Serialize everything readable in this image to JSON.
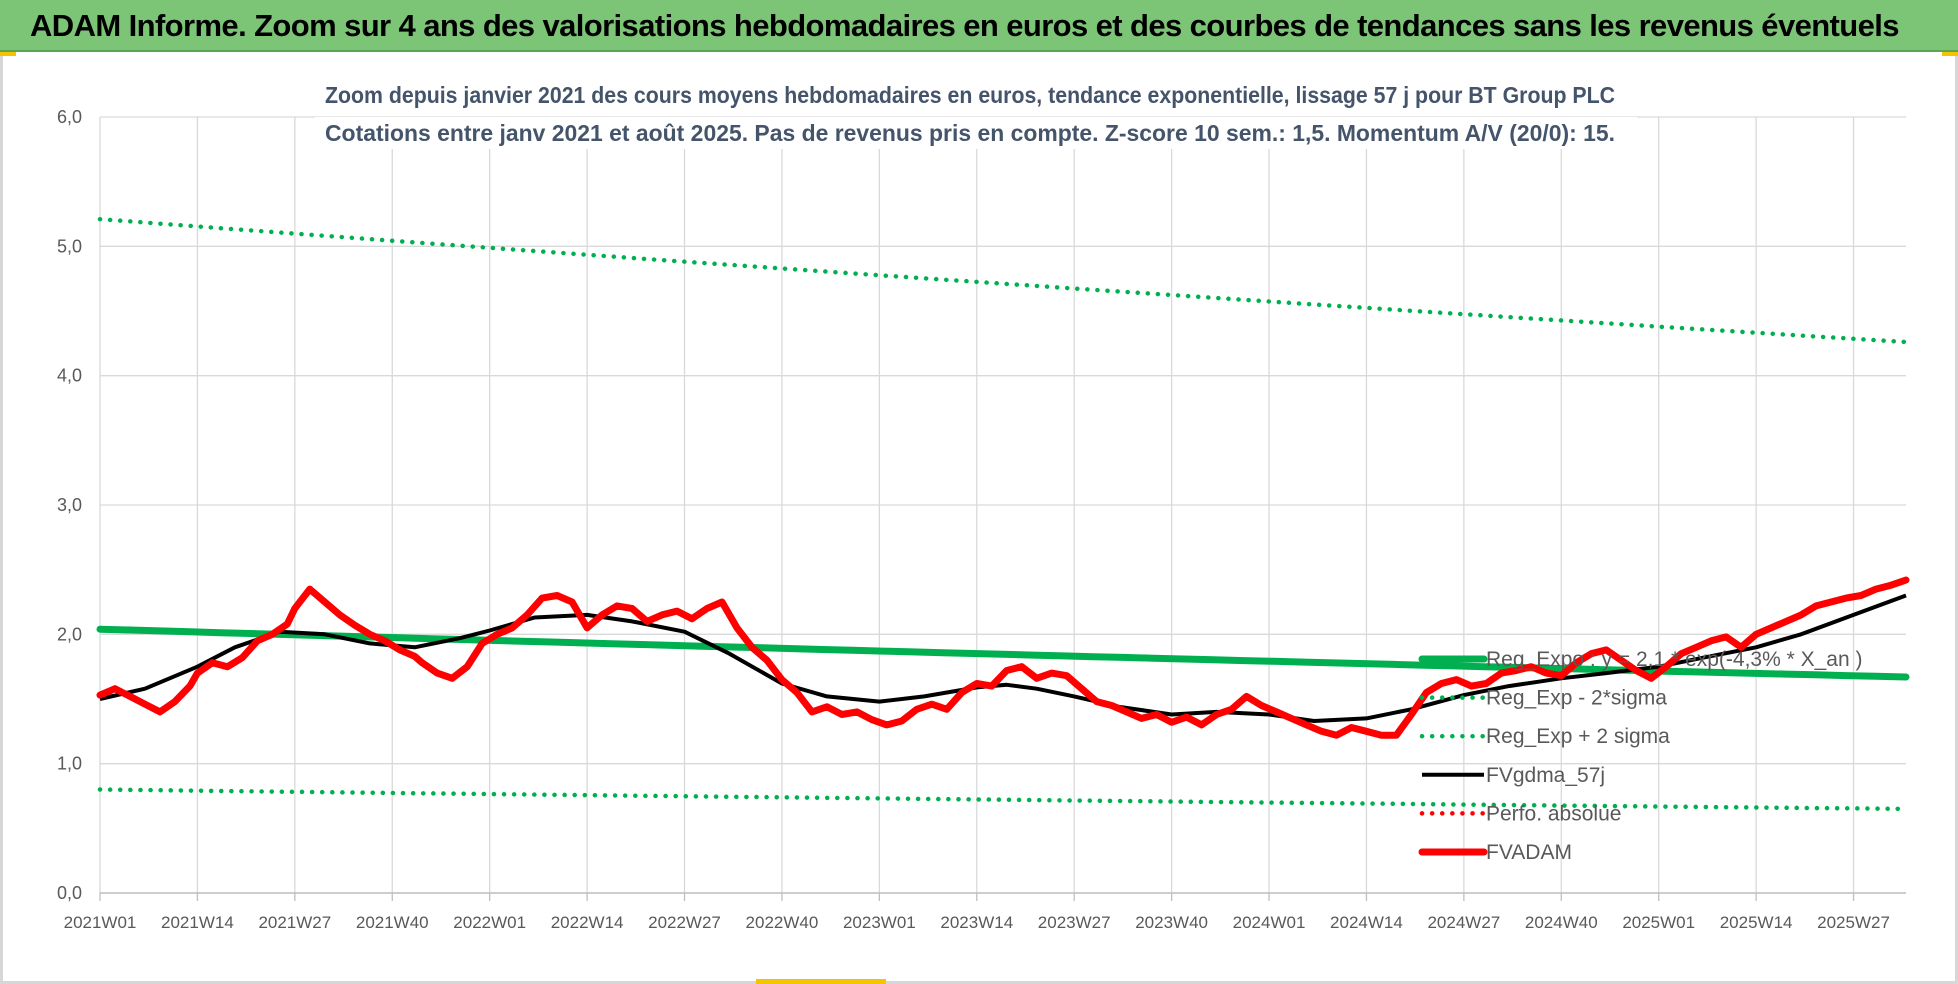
{
  "banner": {
    "title": "ADAM Informe. Zoom sur 4 ans des valorisations hebdomadaires en euros et des courbes de tendances sans les revenus éventuels"
  },
  "colors": {
    "banner_bg": "#7cc576",
    "grid": "#d9d9d9",
    "trend": "#00b050",
    "price": "#ff0000",
    "smooth": "#000000",
    "title_text": "#44546a",
    "tick_text": "#595959"
  },
  "chart_data": {
    "type": "line",
    "title_lines": [
      "Zoom depuis janvier 2021 des cours moyens hebdomadaires en euros, tendance exponentielle, lissage 57 j pour BT Group PLC",
      "Cotations entre janv 2021 et août 2025.  Pas de revenus pris en compte. Z-score 10 sem.: 1,5. Momentum A/V (20/0): 15."
    ],
    "xlabel": "",
    "ylabel": "",
    "ylim": [
      0,
      6
    ],
    "y_ticks": [
      "0,0",
      "1,0",
      "2,0",
      "3,0",
      "4,0",
      "5,0",
      "6,0"
    ],
    "x_ticks": [
      "2021W01",
      "2021W14",
      "2021W27",
      "2021W40",
      "2022W01",
      "2022W14",
      "2022W27",
      "2022W40",
      "2023W01",
      "2023W14",
      "2023W27",
      "2023W40",
      "2024W01",
      "2024W14",
      "2024W27",
      "2024W40",
      "2025W01",
      "2025W14",
      "2025W27"
    ],
    "x_tick_weeks": [
      0,
      13,
      26,
      39,
      52,
      65,
      78,
      91,
      104,
      117,
      130,
      143,
      156,
      169,
      182,
      195,
      208,
      221,
      234
    ],
    "x_week_range": [
      0,
      241
    ],
    "grid": true,
    "legend_position": "lower-right",
    "legend": [
      "Reg_Expo : y = 2,1 * exp(-4,3% * X_an )",
      "Reg_Exp - 2*sigma",
      "Reg_Exp + 2 sigma",
      "FVgdma_57j",
      "Perfo. absolue",
      "FVADAM"
    ],
    "series": [
      {
        "name": "Reg_Expo : y = 2,1 * exp(-4,3% * X_an )",
        "style": "thick-solid",
        "color": "#00b050",
        "x": [
          0,
          241
        ],
        "y": [
          2.04,
          1.67
        ]
      },
      {
        "name": "Reg_Exp - 2*sigma",
        "style": "dotted",
        "color": "#00b050",
        "x": [
          0,
          241
        ],
        "y": [
          0.8,
          0.65
        ]
      },
      {
        "name": "Reg_Exp + 2 sigma",
        "style": "dotted",
        "color": "#00b050",
        "x": [
          0,
          241
        ],
        "y": [
          5.21,
          4.26
        ]
      },
      {
        "name": "FVgdma_57j",
        "style": "solid",
        "color": "#000000",
        "x": [
          0,
          6,
          13,
          18,
          24,
          30,
          36,
          42,
          48,
          52,
          58,
          65,
          71,
          78,
          84,
          91,
          97,
          104,
          110,
          117,
          121,
          125,
          130,
          136,
          143,
          149,
          156,
          162,
          169,
          175,
          182,
          188,
          195,
          201,
          208,
          214,
          221,
          227,
          234,
          241
        ],
        "y": [
          1.5,
          1.58,
          1.75,
          1.9,
          2.02,
          2.0,
          1.93,
          1.9,
          1.97,
          2.03,
          2.13,
          2.15,
          2.1,
          2.02,
          1.85,
          1.62,
          1.52,
          1.48,
          1.52,
          1.59,
          1.61,
          1.58,
          1.52,
          1.44,
          1.38,
          1.4,
          1.38,
          1.33,
          1.35,
          1.42,
          1.53,
          1.6,
          1.66,
          1.7,
          1.75,
          1.82,
          1.9,
          2.0,
          2.15,
          2.3
        ]
      },
      {
        "name": "Perfo. absolue",
        "style": "dotted",
        "color": "#ff0000",
        "x": [],
        "y": []
      },
      {
        "name": "FVADAM",
        "style": "thick-solid",
        "color": "#ff0000",
        "x": [
          0,
          2,
          4,
          6,
          8,
          10,
          12,
          13,
          15,
          17,
          19,
          21,
          23,
          25,
          26,
          28,
          30,
          32,
          34,
          36,
          38,
          40,
          42,
          43,
          45,
          47,
          49,
          51,
          53,
          55,
          57,
          59,
          61,
          63,
          65,
          67,
          69,
          71,
          73,
          75,
          77,
          79,
          81,
          83,
          85,
          87,
          89,
          91,
          93,
          95,
          97,
          99,
          101,
          103,
          105,
          107,
          109,
          111,
          113,
          115,
          117,
          119,
          121,
          123,
          125,
          127,
          129,
          131,
          133,
          135,
          137,
          139,
          141,
          143,
          145,
          147,
          149,
          151,
          153,
          155,
          157,
          159,
          161,
          163,
          165,
          167,
          169,
          171,
          173,
          175,
          177,
          179,
          181,
          183,
          185,
          187,
          189,
          191,
          193,
          195,
          197,
          199,
          201,
          203,
          205,
          207,
          209,
          211,
          213,
          215,
          217,
          219,
          221,
          223,
          225,
          227,
          229,
          231,
          233,
          235,
          237,
          239,
          241
        ],
        "y": [
          1.53,
          1.58,
          1.52,
          1.46,
          1.4,
          1.48,
          1.6,
          1.7,
          1.78,
          1.75,
          1.82,
          1.95,
          2.0,
          2.08,
          2.2,
          2.35,
          2.25,
          2.15,
          2.07,
          2.0,
          1.95,
          1.88,
          1.83,
          1.78,
          1.7,
          1.66,
          1.75,
          1.93,
          2.0,
          2.05,
          2.15,
          2.28,
          2.3,
          2.25,
          2.05,
          2.15,
          2.22,
          2.2,
          2.1,
          2.15,
          2.18,
          2.12,
          2.2,
          2.25,
          2.05,
          1.9,
          1.8,
          1.65,
          1.55,
          1.4,
          1.44,
          1.38,
          1.4,
          1.34,
          1.3,
          1.33,
          1.42,
          1.46,
          1.42,
          1.55,
          1.62,
          1.6,
          1.72,
          1.75,
          1.66,
          1.7,
          1.68,
          1.58,
          1.48,
          1.45,
          1.4,
          1.35,
          1.38,
          1.32,
          1.36,
          1.3,
          1.38,
          1.42,
          1.52,
          1.45,
          1.4,
          1.35,
          1.3,
          1.25,
          1.22,
          1.28,
          1.25,
          1.22,
          1.22,
          1.38,
          1.55,
          1.62,
          1.65,
          1.6,
          1.62,
          1.7,
          1.72,
          1.75,
          1.7,
          1.68,
          1.78,
          1.85,
          1.88,
          1.8,
          1.72,
          1.66,
          1.75,
          1.85,
          1.9,
          1.95,
          1.98,
          1.9,
          2.0,
          2.05,
          2.1,
          2.15,
          2.22,
          2.25,
          2.28,
          2.3,
          2.35,
          2.38,
          2.42
        ]
      }
    ]
  }
}
